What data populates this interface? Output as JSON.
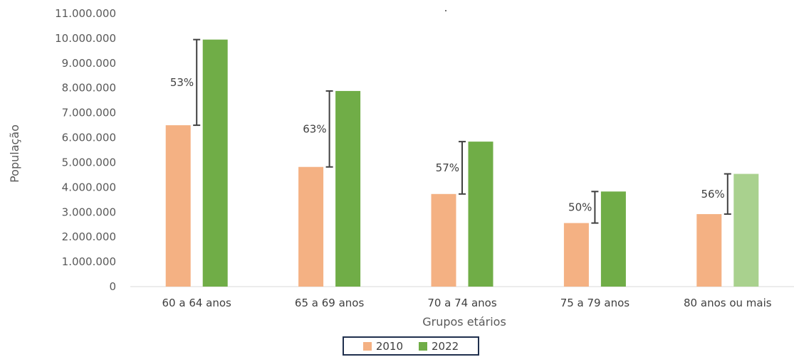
{
  "chart_data": {
    "type": "bar",
    "title": "",
    "title_mark": ".",
    "xlabel": "Grupos etários",
    "ylabel": "População",
    "ylim": [
      0,
      11000000
    ],
    "y_ticks": [
      "0",
      "1.000.000",
      "2.000.000",
      "3.000.000",
      "4.000.000",
      "5.000.000",
      "6.000.000",
      "7.000.000",
      "8.000.000",
      "9.000.000",
      "10.000.000",
      "11.000.000"
    ],
    "categories": [
      "60 a 64 anos",
      "65 a 69 anos",
      "70 a 74 anos",
      "75 a 79 anos",
      "80 anos ou mais"
    ],
    "series": [
      {
        "name": "2010",
        "color": "#f4b183",
        "values": [
          6500000,
          4820000,
          3730000,
          2560000,
          2920000
        ]
      },
      {
        "name": "2022",
        "color": "#70ad47",
        "values": [
          9950000,
          7880000,
          5840000,
          3830000,
          4540000
        ],
        "point_colors": [
          "#70ad47",
          "#70ad47",
          "#70ad47",
          "#70ad47",
          "#a9d18e"
        ]
      }
    ],
    "growth_labels": [
      "53%",
      "63%",
      "57%",
      "50%",
      "56%"
    ],
    "grid": false,
    "legend_position": "bottom"
  }
}
